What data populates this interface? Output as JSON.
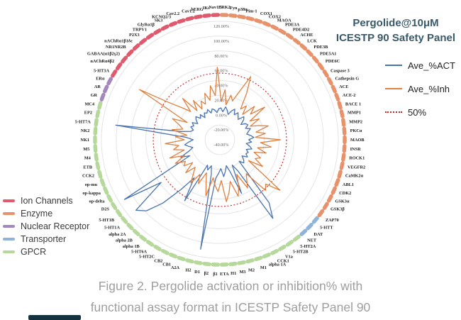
{
  "header": {
    "title_line1": "Pergolide@10μM",
    "title_line2": "ICESTP 90 Safety Panel"
  },
  "series_legend": [
    {
      "label": "Ave_%ACT",
      "color": "#4a74ae",
      "style": "solid"
    },
    {
      "label": "Ave_%Inh",
      "color": "#e07f3e",
      "style": "solid"
    },
    {
      "label": "50%",
      "color": "#cc2222",
      "style": "dotted"
    }
  ],
  "category_legend": [
    {
      "label": "Ion Channels",
      "color": "#e05a6e"
    },
    {
      "label": "Enzyme",
      "color": "#e8926c"
    },
    {
      "label": "Nuclear Receptor",
      "color": "#a387bf"
    },
    {
      "label": "Transporter",
      "color": "#8fb3d9"
    },
    {
      "label": "GPCR",
      "color": "#b7d89b"
    }
  ],
  "caption": {
    "line1": "Figure 2. Pergolide activation or inhibition% with",
    "line2": "functional assay format in ICESTP Safety Panel 90"
  },
  "chart_data": {
    "type": "radar",
    "title": "Pergolide@10μM ICESTP 90 Safety Panel",
    "axis": {
      "min": -40,
      "max": 120,
      "tick_values": [
        120,
        100,
        80,
        60,
        40,
        20,
        0,
        -20,
        -40
      ],
      "tick_labels": [
        "120.00%",
        "100.00%",
        "80.00%",
        "60.00%",
        "40.00%",
        "20.00%",
        "0.00%",
        "-20.00%",
        "-40.00%"
      ],
      "reference_circle_value": 50,
      "grid": "circular, no spokes",
      "legend_position": "top-right"
    },
    "class_colors": {
      "ion": "#e05a6e",
      "enz": "#e8926c",
      "nuc": "#a387bf",
      "tra": "#8fb3d9",
      "gpc": "#b7d89b"
    },
    "categories": [
      "ERK2",
      "Fyn",
      "p38α",
      "Pim-1",
      "COX1",
      "COX2",
      "MAOA",
      "PDE3A",
      "PDE4D2",
      "ACHE",
      "LCK",
      "PDE3B",
      "PDE5A1",
      "PDE6C",
      "Caspase 3",
      "Cathepsin G",
      "ACE",
      "ACE-2",
      "BACE 1",
      "MMP1",
      "MMP2",
      "PKCα",
      "MAOB",
      "INSR",
      "ROCK1",
      "VEGFR2",
      "CaMK2α",
      "ABL1",
      "CDK2",
      "GSK3α",
      "GSK3β",
      "ZAP70",
      "5-HTT",
      "DAT",
      "NET",
      "5-HT2A",
      "5-HT2B",
      "V1a",
      "CCK1",
      "alpha 1A",
      "M1",
      "M2",
      "M3",
      "H1",
      "ETA",
      "β1",
      "β2",
      "D1",
      "H2",
      "A2A",
      "CB1",
      "CB2",
      "5-HT2C",
      "5-HT6A",
      "alpha 1B",
      "alpha 2B",
      "alpha 2A",
      "5-HT1A",
      "5-HT1B",
      "D2S",
      "op-delta",
      "op-kappa",
      "op-mu",
      "CCK2",
      "ETB",
      "M4",
      "M5",
      "NK1",
      "NK2",
      "5-HT7A",
      "EP2",
      "MC4",
      "GR",
      "AR",
      "ERα",
      "5-HT3A",
      "nAChRα4β2",
      "GABAA(α1β2γ2)",
      "NR1NR2B",
      "nAChRα1β1δε",
      "P2X3",
      "TRPV1",
      "GlyRα1β",
      "SK3",
      "KCNQ2/3",
      "Cav2.2",
      "Cav1.2",
      "hERG",
      "IKs",
      "Nav1.5"
    ],
    "target_classes": [
      "enz",
      "enz",
      "enz",
      "enz",
      "enz",
      "enz",
      "enz",
      "enz",
      "enz",
      "enz",
      "enz",
      "enz",
      "enz",
      "enz",
      "enz",
      "enz",
      "enz",
      "enz",
      "enz",
      "enz",
      "enz",
      "enz",
      "enz",
      "enz",
      "enz",
      "enz",
      "enz",
      "enz",
      "enz",
      "enz",
      "enz",
      "enz",
      "tra",
      "tra",
      "tra",
      "gpc",
      "gpc",
      "gpc",
      "gpc",
      "gpc",
      "gpc",
      "gpc",
      "gpc",
      "gpc",
      "gpc",
      "gpc",
      "gpc",
      "gpc",
      "gpc",
      "gpc",
      "gpc",
      "gpc",
      "gpc",
      "gpc",
      "gpc",
      "gpc",
      "gpc",
      "gpc",
      "gpc",
      "gpc",
      "gpc",
      "gpc",
      "gpc",
      "gpc",
      "gpc",
      "gpc",
      "gpc",
      "gpc",
      "gpc",
      "gpc",
      "gpc",
      "gpc",
      "nuc",
      "nuc",
      "nuc",
      "ion",
      "ion",
      "ion",
      "ion",
      "ion",
      "ion",
      "ion",
      "ion",
      "ion",
      "ion",
      "ion",
      "ion",
      "ion",
      "ion",
      "ion"
    ],
    "series": [
      {
        "name": "Ave_%ACT",
        "color": "#4a74ae",
        "values": [
          3,
          -2,
          5,
          1,
          -4,
          2,
          6,
          -1,
          4,
          0,
          -3,
          5,
          2,
          -5,
          1,
          3,
          -2,
          4,
          0,
          -3,
          2,
          6,
          -1,
          3,
          -4,
          1,
          5,
          -2,
          2,
          0,
          4,
          -3,
          2,
          5,
          -1,
          68,
          88,
          8,
          -2,
          38,
          6,
          -4,
          3,
          10,
          -1,
          5,
          12,
          110,
          8,
          -3,
          4,
          -2,
          55,
          22,
          45,
          75,
          98,
          108,
          58,
          112,
          6,
          18,
          4,
          -2,
          3,
          8,
          2,
          -4,
          5,
          102,
          14,
          1,
          -2,
          3,
          0,
          4,
          -3,
          2,
          5,
          -1,
          3,
          -4,
          2,
          0,
          4,
          -2,
          3,
          1,
          -3,
          2
        ]
      },
      {
        "name": "Ave_%Inh",
        "color": "#e07f3e",
        "values": [
          12,
          28,
          8,
          22,
          15,
          30,
          55,
          32,
          10,
          18,
          6,
          25,
          14,
          35,
          8,
          20,
          5,
          16,
          28,
          10,
          22,
          8,
          42,
          15,
          30,
          12,
          25,
          9,
          20,
          14,
          28,
          8,
          66,
          46,
          52,
          18,
          25,
          35,
          12,
          28,
          40,
          18,
          32,
          44,
          15,
          30,
          22,
          12,
          38,
          20,
          8,
          26,
          14,
          30,
          18,
          10,
          24,
          8,
          20,
          15,
          28,
          12,
          32,
          10,
          24,
          16,
          34,
          8,
          20,
          5,
          26,
          12,
          18,
          30,
          10,
          88,
          46,
          28,
          15,
          35,
          10,
          24,
          8,
          18,
          12,
          26,
          15,
          34,
          20,
          58
        ]
      }
    ]
  }
}
